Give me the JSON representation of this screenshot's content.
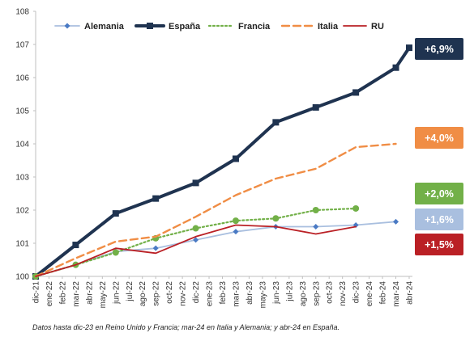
{
  "chart_data": {
    "type": "line",
    "x": [
      "dic-21",
      "ene-22",
      "feb-22",
      "mar-22",
      "abr-22",
      "may-22",
      "jun-22",
      "jul-22",
      "ago-22",
      "sep-22",
      "oct-22",
      "nov-22",
      "dic-22",
      "ene-23",
      "feb-23",
      "mar-23",
      "abr-23",
      "may-23",
      "jun-23",
      "jul-23",
      "ago-23",
      "sep-23",
      "oct-23",
      "nov-23",
      "dic-23",
      "ene-24",
      "feb-24",
      "mar-24",
      "abr-24"
    ],
    "ylim": [
      100,
      108
    ],
    "yticks": [
      100,
      101,
      102,
      103,
      104,
      105,
      106,
      107,
      108
    ],
    "grid": false,
    "legend_position": "top",
    "series": [
      {
        "name": "Alemania",
        "color": "#a9bfdf",
        "style": "solid",
        "marker": "diamond",
        "points": [
          [
            "dic-21",
            100.0
          ],
          [
            "mar-22",
            100.35
          ],
          [
            "jun-22",
            100.75
          ],
          [
            "sep-22",
            100.85
          ],
          [
            "dic-22",
            101.1
          ],
          [
            "mar-23",
            101.35
          ],
          [
            "jun-23",
            101.5
          ],
          [
            "sep-23",
            101.5
          ],
          [
            "dic-23",
            101.55
          ],
          [
            "mar-24",
            101.65
          ]
        ]
      },
      {
        "name": "España",
        "color": "#1f3350",
        "style": "solid",
        "marker": "square",
        "points": [
          [
            "dic-21",
            100.0
          ],
          [
            "mar-22",
            100.95
          ],
          [
            "jun-22",
            101.9
          ],
          [
            "sep-22",
            102.35
          ],
          [
            "dic-22",
            102.82
          ],
          [
            "mar-23",
            103.55
          ],
          [
            "jun-23",
            104.65
          ],
          [
            "sep-23",
            105.1
          ],
          [
            "dic-23",
            105.55
          ],
          [
            "mar-24",
            106.3
          ],
          [
            "abr-24",
            106.9
          ]
        ]
      },
      {
        "name": "Francia",
        "color": "#72b048",
        "style": "dotted",
        "marker": "circle",
        "points": [
          [
            "dic-21",
            100.0
          ],
          [
            "mar-22",
            100.35
          ],
          [
            "jun-22",
            100.72
          ],
          [
            "sep-22",
            101.15
          ],
          [
            "dic-22",
            101.45
          ],
          [
            "mar-23",
            101.68
          ],
          [
            "jun-23",
            101.75
          ],
          [
            "sep-23",
            102.0
          ],
          [
            "dic-23",
            102.05
          ]
        ]
      },
      {
        "name": "Italia",
        "color": "#f08d45",
        "style": "dashed",
        "marker": "none",
        "points": [
          [
            "dic-21",
            100.0
          ],
          [
            "mar-22",
            100.55
          ],
          [
            "jun-22",
            101.05
          ],
          [
            "sep-22",
            101.2
          ],
          [
            "dic-22",
            101.8
          ],
          [
            "mar-23",
            102.45
          ],
          [
            "jun-23",
            102.95
          ],
          [
            "sep-23",
            103.25
          ],
          [
            "dic-23",
            103.9
          ],
          [
            "mar-24",
            104.0
          ]
        ]
      },
      {
        "name": "RU",
        "color": "#ba2025",
        "style": "solid",
        "marker": "none",
        "points": [
          [
            "dic-21",
            100.0
          ],
          [
            "mar-22",
            100.35
          ],
          [
            "jun-22",
            100.85
          ],
          [
            "sep-22",
            100.7
          ],
          [
            "dic-22",
            101.2
          ],
          [
            "mar-23",
            101.55
          ],
          [
            "jun-23",
            101.5
          ],
          [
            "sep-23",
            101.28
          ],
          [
            "dic-23",
            101.5
          ]
        ]
      }
    ],
    "badges": [
      {
        "text": "+6,9%",
        "color": "#1f3350"
      },
      {
        "text": "+4,0%",
        "color": "#f08d45"
      },
      {
        "text": "+2,0%",
        "color": "#72b048"
      },
      {
        "text": "+1,6%",
        "color": "#a9bfdf"
      },
      {
        "text": "+1,5%",
        "color": "#ba2025"
      }
    ],
    "note": "Datos hasta dic-23 en Reino Unido y Francia; mar-24 en Italia y Alemania; y abr-24 en España."
  }
}
